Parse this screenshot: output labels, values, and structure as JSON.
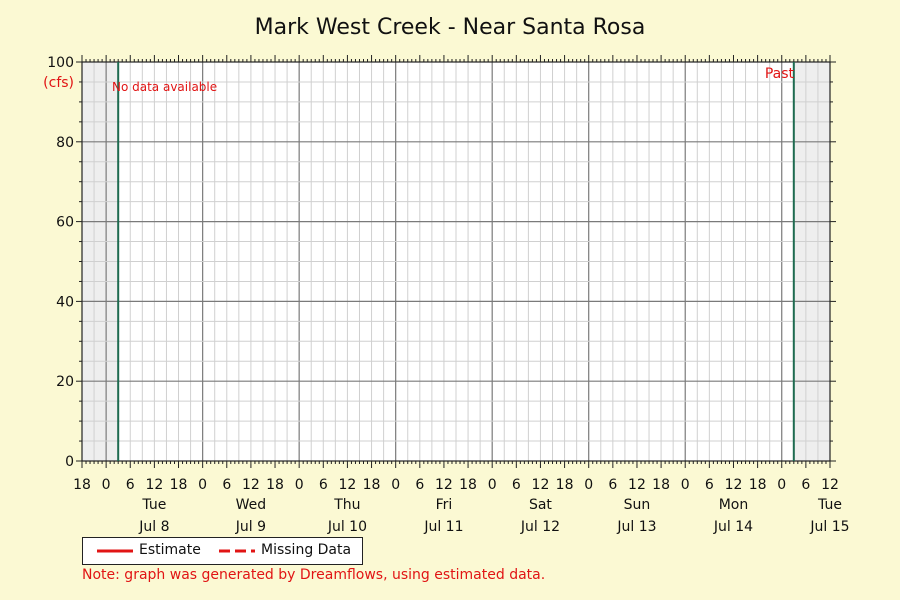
{
  "chart_data": {
    "type": "line",
    "title": "Mark West Creek - Near Santa Rosa",
    "ylabel": "(cfs)",
    "ylim": [
      0,
      100
    ],
    "yticks": [
      0,
      20,
      40,
      60,
      80,
      100
    ],
    "x_start": "Jul 7 18:00",
    "x_end": "Jul 15 12:00",
    "hour_ticks": [
      "18",
      "0",
      "6",
      "12",
      "18",
      "0",
      "6",
      "12",
      "18",
      "0",
      "6",
      "12",
      "18",
      "0",
      "6",
      "12",
      "18",
      "0",
      "6",
      "12",
      "18",
      "0",
      "6",
      "12",
      "18",
      "0",
      "6",
      "12",
      "18",
      "0",
      "6",
      "12"
    ],
    "days": [
      {
        "weekday": "Tue",
        "date": "Jul 8"
      },
      {
        "weekday": "Wed",
        "date": "Jul 9"
      },
      {
        "weekday": "Thu",
        "date": "Jul 10"
      },
      {
        "weekday": "Fri",
        "date": "Jul 11"
      },
      {
        "weekday": "Sat",
        "date": "Jul 12"
      },
      {
        "weekday": "Sun",
        "date": "Jul 13"
      },
      {
        "weekday": "Mon",
        "date": "Jul 14"
      },
      {
        "weekday": "Tue",
        "date": "Jul 15"
      }
    ],
    "series": [
      {
        "name": "Estimate",
        "style": "solid",
        "color": "#e11414",
        "values": []
      },
      {
        "name": "Missing Data",
        "style": "dashed",
        "color": "#e11414",
        "values": []
      }
    ],
    "annotations": {
      "no_data": "No data available",
      "past": "Past",
      "past_marker_time": "Jul 8 03:00",
      "now_marker_time": "Jul 15 03:00"
    },
    "grid": true
  },
  "legend": {
    "estimate_label": "Estimate",
    "missing_label": "Missing Data"
  },
  "note": "Note: graph was generated by Dreamflows, using estimated data.",
  "colors": {
    "background": "#fbf9d3",
    "plot": "#ffffff",
    "shaded": "#eeeeee",
    "accent_red": "#e11414",
    "marker_green": "#1e6b50"
  }
}
